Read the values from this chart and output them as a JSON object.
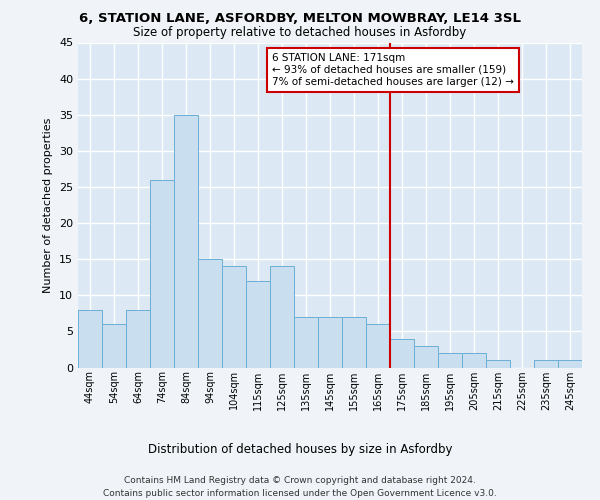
{
  "title": "6, STATION LANE, ASFORDBY, MELTON MOWBRAY, LE14 3SL",
  "subtitle": "Size of property relative to detached houses in Asfordby",
  "xlabel": "Distribution of detached houses by size in Asfordby",
  "ylabel": "Number of detached properties",
  "footer_line1": "Contains HM Land Registry data © Crown copyright and database right 2024.",
  "footer_line2": "Contains public sector information licensed under the Open Government Licence v3.0.",
  "bar_labels": [
    "44sqm",
    "54sqm",
    "64sqm",
    "74sqm",
    "84sqm",
    "94sqm",
    "104sqm",
    "115sqm",
    "125sqm",
    "135sqm",
    "145sqm",
    "155sqm",
    "165sqm",
    "175sqm",
    "185sqm",
    "195sqm",
    "205sqm",
    "215sqm",
    "225sqm",
    "235sqm",
    "245sqm"
  ],
  "bar_values": [
    8,
    6,
    8,
    26,
    35,
    15,
    14,
    12,
    14,
    7,
    7,
    7,
    6,
    4,
    3,
    2,
    2,
    1,
    0,
    1,
    1
  ],
  "bar_color": "#c9dff0",
  "bar_edge_color": "#6aaed6",
  "grid_color": "#ffffff",
  "bg_color": "#dce9f5",
  "fig_bg_color": "#f0f4f8",
  "annotation_text": "6 STATION LANE: 171sqm\n← 93% of detached houses are smaller (159)\n7% of semi-detached houses are larger (12) →",
  "vline_color": "#cc0000",
  "ylim": [
    0,
    45
  ],
  "yticks": [
    0,
    5,
    10,
    15,
    20,
    25,
    30,
    35,
    40,
    45
  ]
}
